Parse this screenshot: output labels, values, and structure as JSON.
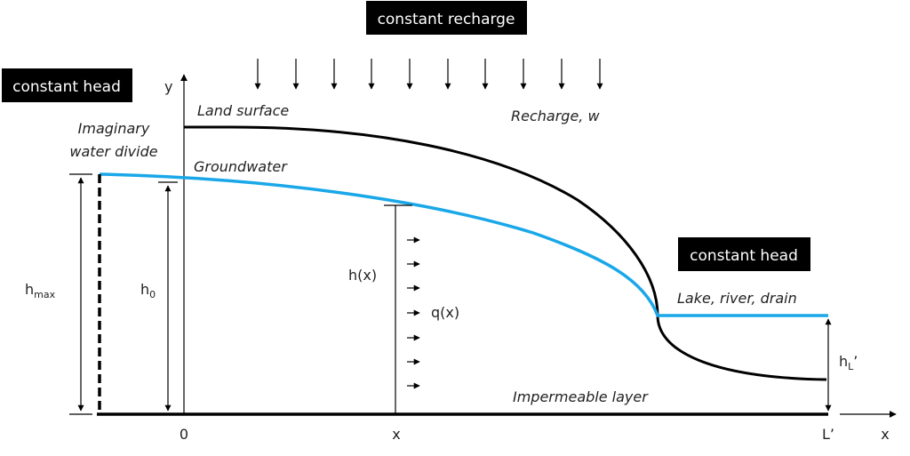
{
  "colors": {
    "groundwater": "#1aa7e8",
    "line": "#000000",
    "badge_bg": "#000000",
    "badge_text": "#ffffff"
  },
  "badges": {
    "constant_recharge": "constant recharge",
    "constant_head_left": "constant head",
    "constant_head_right": "constant head"
  },
  "labels": {
    "imaginary_line1": "Imaginary",
    "imaginary_line2": "water divide",
    "land_surface": "Land surface",
    "recharge": "Recharge, w",
    "groundwater": "Groundwater",
    "lake": "Lake, river, drain",
    "impermeable": "Impermeable layer",
    "hmax_base": "h",
    "hmax_sub": "max",
    "h0_base": "h",
    "h0_sub": "0",
    "hx": "h(x)",
    "qx": "q(x)",
    "hL_base": "h",
    "hL_sub": "L",
    "hL_prime": "’"
  },
  "axes": {
    "y": "y",
    "x": "x",
    "origin": "0",
    "x_mark": "x",
    "L_mark": "L’"
  }
}
